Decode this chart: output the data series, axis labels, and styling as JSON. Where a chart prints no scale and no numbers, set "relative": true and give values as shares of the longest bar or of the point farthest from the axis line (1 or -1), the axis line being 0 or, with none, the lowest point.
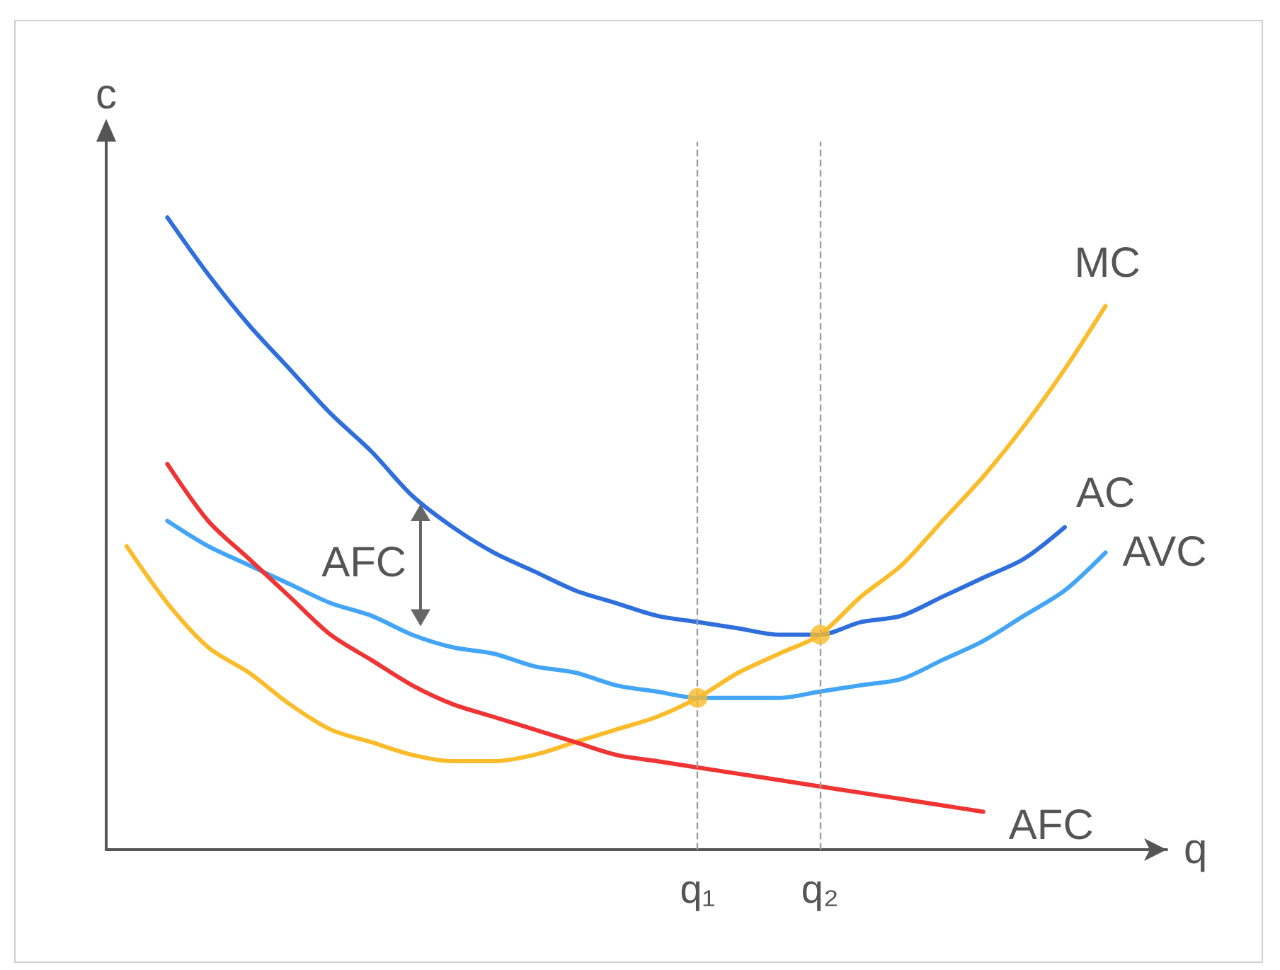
{
  "chart_data": {
    "type": "line",
    "relative": true,
    "xlabel": "q",
    "ylabel": "c",
    "marker": "none",
    "grid": false,
    "categories": [
      null,
      null,
      null,
      null,
      null,
      null,
      null,
      null,
      null,
      null,
      null,
      null,
      null,
      null,
      "q₁",
      null,
      null,
      "q₂",
      null,
      null,
      null,
      null,
      null,
      null,
      null,
      null
    ],
    "series": [
      {
        "name": "MC",
        "color": "#fbbc2c",
        "values": [
          0.48,
          0.39,
          0.32,
          0.28,
          0.23,
          0.19,
          0.17,
          0.15,
          0.14,
          0.14,
          0.15,
          0.17,
          0.19,
          0.21,
          0.24,
          0.28,
          0.31,
          0.34,
          0.4,
          0.45,
          0.52,
          0.59,
          0.67,
          0.76,
          0.86,
          null
        ]
      },
      {
        "name": "AC",
        "color": "#2f6fdc",
        "values": [
          null,
          1.0,
          0.91,
          0.83,
          0.76,
          0.69,
          0.63,
          0.56,
          0.51,
          0.47,
          0.44,
          0.41,
          0.39,
          0.37,
          0.36,
          0.35,
          0.34,
          0.34,
          0.36,
          0.37,
          0.4,
          0.43,
          0.46,
          0.51,
          null,
          null
        ]
      },
      {
        "name": "AVC",
        "color": "#42a5f5",
        "values": [
          null,
          0.52,
          0.48,
          0.45,
          0.42,
          0.39,
          0.37,
          0.34,
          0.32,
          0.31,
          0.29,
          0.28,
          0.26,
          0.25,
          0.24,
          0.24,
          0.24,
          0.25,
          0.26,
          0.27,
          0.3,
          0.33,
          0.37,
          0.41,
          0.47,
          null
        ]
      },
      {
        "name": "AFC",
        "color": "#ef3434",
        "values": [
          null,
          0.61,
          0.52,
          0.46,
          0.4,
          0.34,
          0.3,
          0.26,
          0.23,
          0.21,
          0.19,
          0.17,
          0.15,
          0.14,
          0.13,
          0.12,
          0.11,
          0.1,
          0.09,
          0.08,
          0.07,
          0.06,
          null,
          null,
          null,
          null
        ]
      },
      {
        "type": "scatter",
        "marker": "circle",
        "color": "#fbbc2c",
        "x": [
          "q₁",
          "q₂"
        ],
        "values": [
          0.24,
          0.34
        ]
      }
    ],
    "ref_lines": [
      {
        "axis": "x",
        "value": "q₁",
        "color": "#9e9e9e",
        "line_style": "dashed"
      },
      {
        "axis": "x",
        "value": "q₂",
        "color": "#9e9e9e",
        "line_style": "dashed"
      }
    ],
    "annotations": [
      "AFC"
    ]
  }
}
